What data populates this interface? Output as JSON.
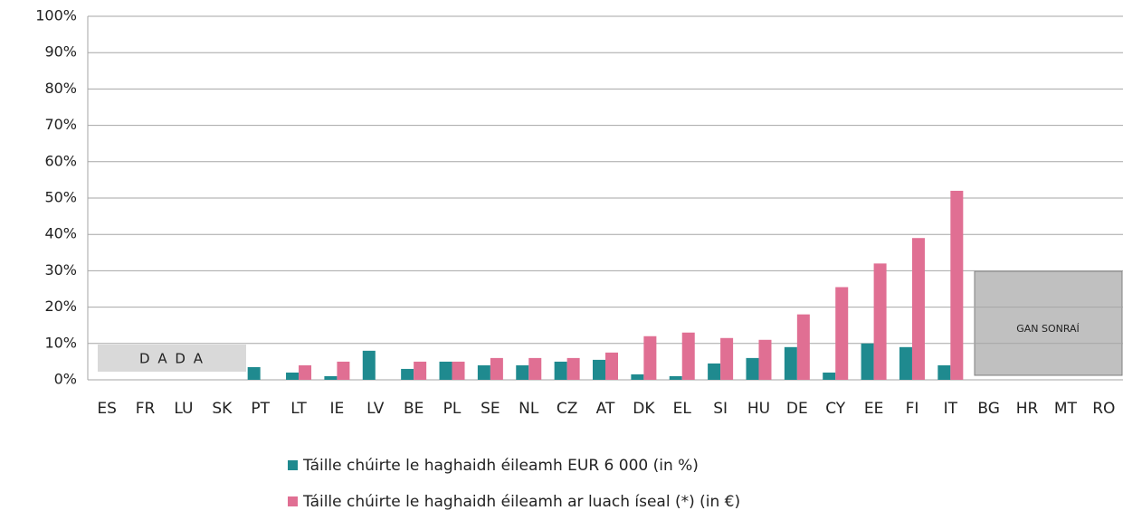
{
  "chart_data": {
    "type": "bar",
    "categories": [
      "ES",
      "FR",
      "LU",
      "SK",
      "PT",
      "LT",
      "IE",
      "LV",
      "BE",
      "PL",
      "SE",
      "NL",
      "CZ",
      "AT",
      "DK",
      "EL",
      "SI",
      "HU",
      "DE",
      "CY",
      "EE",
      "FI",
      "IT",
      "BG",
      "HR",
      "MT",
      "RO"
    ],
    "series": [
      {
        "name": "Táille chúirte le haghaidh éileamh EUR 6 000 (in %)",
        "color": "#1f8a8f",
        "values": [
          null,
          null,
          null,
          null,
          3.5,
          2,
          1,
          8,
          3,
          5,
          4,
          4,
          5,
          5.5,
          1.5,
          1,
          4.5,
          6,
          9,
          2,
          10,
          9,
          4,
          null,
          null,
          null,
          null
        ]
      },
      {
        "name": "Táille chúirte le haghaidh éileamh ar luach íseal (*) (in €)",
        "color": "#e06f93",
        "values": [
          null,
          null,
          null,
          null,
          null,
          4,
          5,
          null,
          5,
          5,
          6,
          6,
          6,
          7.5,
          12,
          13,
          11.5,
          11,
          18,
          25.5,
          32,
          39,
          52,
          null,
          null,
          null,
          null
        ]
      }
    ],
    "ylim": [
      0,
      100
    ],
    "yticks": [
      {
        "value": 0,
        "label": "0%"
      },
      {
        "value": 10,
        "label": "10%"
      },
      {
        "value": 20,
        "label": "20%"
      },
      {
        "value": 30,
        "label": "30%"
      },
      {
        "value": 40,
        "label": "40%"
      },
      {
        "value": 50,
        "label": "50%"
      },
      {
        "value": 60,
        "label": "60%"
      },
      {
        "value": 70,
        "label": "70%"
      },
      {
        "value": 80,
        "label": "80%"
      },
      {
        "value": 90,
        "label": "90%"
      },
      {
        "value": 100,
        "label": "100%"
      }
    ],
    "grid": true,
    "annotations": [
      "D A D A",
      "GAN SONRAÍ"
    ]
  }
}
